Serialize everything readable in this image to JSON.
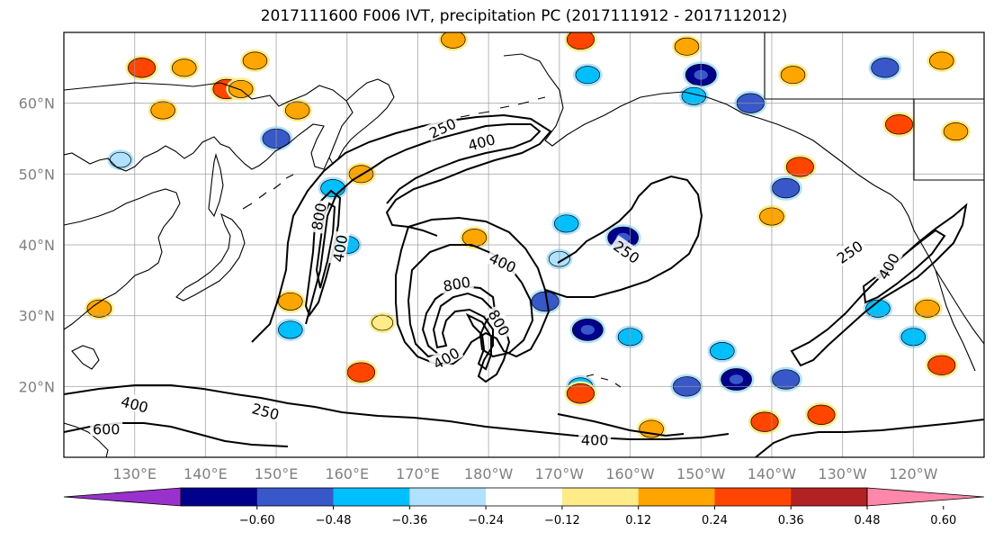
{
  "title": "2017111600 F006 IVT, precipitation PC (2017111912 - 2017112012)",
  "map": {
    "projection": "equirectangular",
    "lon_range": [
      120,
      250
    ],
    "lat_range": [
      10,
      70
    ],
    "gridline_color": "#999999",
    "coastline_color": "#000000",
    "lat_labels": [
      {
        "lat": 60,
        "text": "60°N"
      },
      {
        "lat": 50,
        "text": "50°N"
      },
      {
        "lat": 40,
        "text": "40°N"
      },
      {
        "lat": 30,
        "text": "30°N"
      },
      {
        "lat": 20,
        "text": "20°N"
      }
    ],
    "lon_labels": [
      {
        "lon": 130,
        "text": "130°E"
      },
      {
        "lon": 140,
        "text": "140°E"
      },
      {
        "lon": 150,
        "text": "150°E"
      },
      {
        "lon": 160,
        "text": "160°E"
      },
      {
        "lon": 170,
        "text": "170°E"
      },
      {
        "lon": 180,
        "text": "180°W"
      },
      {
        "lon": 190,
        "text": "170°W"
      },
      {
        "lon": 200,
        "text": "160°W"
      },
      {
        "lon": 210,
        "text": "150°W"
      },
      {
        "lon": 220,
        "text": "140°W"
      },
      {
        "lon": 230,
        "text": "130°W"
      },
      {
        "lon": 240,
        "text": "120°W"
      }
    ],
    "ivt_contour_labels": [
      {
        "text": "250",
        "lon": 173.5,
        "lat": 56.5,
        "rot": -25
      },
      {
        "text": "400",
        "lon": 179,
        "lat": 54.5,
        "rot": -15
      },
      {
        "text": "800",
        "lon": 156,
        "lat": 44,
        "rot": -80
      },
      {
        "text": "400",
        "lon": 159,
        "lat": 39.5,
        "rot": -80
      },
      {
        "text": "400",
        "lon": 182,
        "lat": 37.5,
        "rot": 25
      },
      {
        "text": "800",
        "lon": 175.5,
        "lat": 34.5,
        "rot": -10
      },
      {
        "text": "800",
        "lon": 181.5,
        "lat": 29,
        "rot": 60
      },
      {
        "text": "400",
        "lon": 174,
        "lat": 24,
        "rot": -30
      },
      {
        "text": "250",
        "lon": 199.5,
        "lat": 39,
        "rot": 35
      },
      {
        "text": "250",
        "lon": 231,
        "lat": 39,
        "rot": -35
      },
      {
        "text": "400",
        "lon": 236.5,
        "lat": 37,
        "rot": -60
      },
      {
        "text": "400",
        "lon": 130,
        "lat": 17.5,
        "rot": 15
      },
      {
        "text": "250",
        "lon": 148.5,
        "lat": 16.5,
        "rot": 15
      },
      {
        "text": "600",
        "lon": 126,
        "lat": 14,
        "rot": 0
      },
      {
        "text": "400",
        "lon": 195,
        "lat": 12.5,
        "rot": 0
      }
    ],
    "precip_pc_features": [
      {
        "lon": 131,
        "lat": 65,
        "v": 0.4
      },
      {
        "lon": 143,
        "lat": 62,
        "v": 0.4
      },
      {
        "lon": 137,
        "lat": 65,
        "v": 0.3
      },
      {
        "lon": 147,
        "lat": 66,
        "v": 0.3
      },
      {
        "lon": 145,
        "lat": 62,
        "v": 0.3
      },
      {
        "lon": 153,
        "lat": 59,
        "v": 0.3
      },
      {
        "lon": 150,
        "lat": 55,
        "v": -0.4
      },
      {
        "lon": 158,
        "lat": 48,
        "v": -0.3
      },
      {
        "lon": 162,
        "lat": 50,
        "v": 0.3
      },
      {
        "lon": 175,
        "lat": 69,
        "v": 0.3
      },
      {
        "lon": 193,
        "lat": 69,
        "v": 0.4
      },
      {
        "lon": 208,
        "lat": 68,
        "v": 0.3
      },
      {
        "lon": 210,
        "lat": 64,
        "v": -0.5
      },
      {
        "lon": 194,
        "lat": 64,
        "v": -0.3
      },
      {
        "lon": 217,
        "lat": 60,
        "v": -0.4
      },
      {
        "lon": 209,
        "lat": 61,
        "v": -0.3
      },
      {
        "lon": 223,
        "lat": 64,
        "v": 0.3
      },
      {
        "lon": 236,
        "lat": 65,
        "v": -0.4
      },
      {
        "lon": 244,
        "lat": 66,
        "v": 0.3
      },
      {
        "lon": 238,
        "lat": 57,
        "v": 0.4
      },
      {
        "lon": 246,
        "lat": 56,
        "v": 0.3
      },
      {
        "lon": 224,
        "lat": 51,
        "v": 0.4
      },
      {
        "lon": 222,
        "lat": 48,
        "v": -0.4
      },
      {
        "lon": 199,
        "lat": 41,
        "v": -0.5
      },
      {
        "lon": 191,
        "lat": 43,
        "v": -0.3
      },
      {
        "lon": 178,
        "lat": 41,
        "v": 0.3
      },
      {
        "lon": 190,
        "lat": 38,
        "v": -0.2
      },
      {
        "lon": 160,
        "lat": 40,
        "v": -0.3
      },
      {
        "lon": 152,
        "lat": 32,
        "v": 0.3
      },
      {
        "lon": 152,
        "lat": 28,
        "v": -0.3
      },
      {
        "lon": 165,
        "lat": 29,
        "v": 0.2
      },
      {
        "lon": 188,
        "lat": 32,
        "v": -0.4
      },
      {
        "lon": 194,
        "lat": 28,
        "v": -0.5
      },
      {
        "lon": 200,
        "lat": 27,
        "v": -0.3
      },
      {
        "lon": 162,
        "lat": 22,
        "v": 0.4
      },
      {
        "lon": 193,
        "lat": 20,
        "v": -0.3
      },
      {
        "lon": 193,
        "lat": 19,
        "v": 0.4
      },
      {
        "lon": 208,
        "lat": 20,
        "v": -0.4
      },
      {
        "lon": 215,
        "lat": 21,
        "v": -0.5
      },
      {
        "lon": 213,
        "lat": 25,
        "v": -0.3
      },
      {
        "lon": 222,
        "lat": 21,
        "v": -0.4
      },
      {
        "lon": 227,
        "lat": 16,
        "v": 0.4
      },
      {
        "lon": 244,
        "lat": 23,
        "v": 0.4
      },
      {
        "lon": 242,
        "lat": 31,
        "v": 0.3
      },
      {
        "lon": 240,
        "lat": 27,
        "v": -0.3
      },
      {
        "lon": 219,
        "lat": 15,
        "v": 0.4
      },
      {
        "lon": 203,
        "lat": 14,
        "v": 0.3
      },
      {
        "lon": 134,
        "lat": 59,
        "v": 0.3
      },
      {
        "lon": 128,
        "lat": 52,
        "v": -0.2
      },
      {
        "lon": 125,
        "lat": 31,
        "v": 0.3
      },
      {
        "lon": 220,
        "lat": 44,
        "v": 0.3
      },
      {
        "lon": 235,
        "lat": 31,
        "v": -0.3
      }
    ],
    "ocean_highlight_color": "#ffffff"
  },
  "colorbar": {
    "levels": [
      "−0.60",
      "−0.48",
      "−0.36",
      "−0.24",
      "−0.12",
      "0.12",
      "0.24",
      "0.36",
      "0.48",
      "0.60"
    ],
    "colors": [
      "#9932cc",
      "#00008b",
      "#3858c9",
      "#00bfff",
      "#b0e2ff",
      "#ffffff",
      "#ffeb88",
      "#ffa500",
      "#ff4500",
      "#b22222",
      "#ff88aa"
    ]
  }
}
